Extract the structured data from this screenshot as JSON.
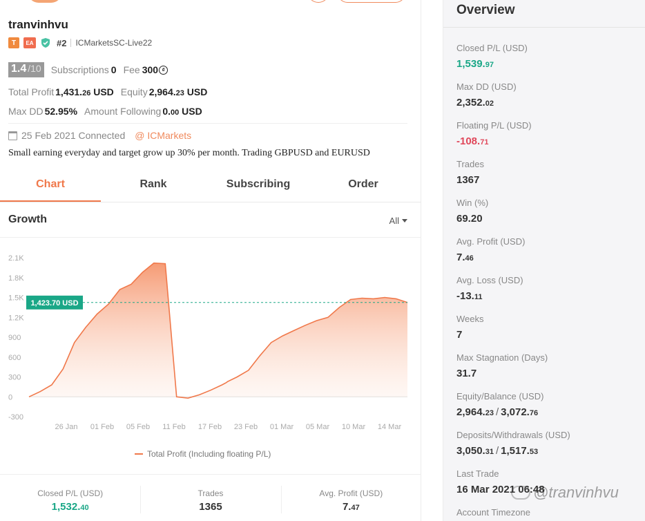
{
  "profile": {
    "username": "tranvinhvu",
    "badge_t": "T",
    "badge_ea": "EA",
    "rank": "#2",
    "server": "ICMarketsSC-Live22",
    "score": "1.4",
    "score_den": "/10",
    "subscriptions_label": "Subscriptions",
    "subscriptions_value": "0",
    "fee_label": "Fee",
    "fee_value": "300",
    "total_profit_label": "Total Profit",
    "total_profit_int": "1,431.",
    "total_profit_dec": "26",
    "total_profit_unit": " USD",
    "equity_label": "Equity",
    "equity_int": "2,964.",
    "equity_dec": "23",
    "equity_unit": " USD",
    "max_dd_label": "Max DD",
    "max_dd_value": "52.95%",
    "amount_following_label": "Amount Following",
    "amount_following_int": "0.",
    "amount_following_dec": "00",
    "amount_following_unit": " USD",
    "connected_text": "25 Feb 2021 Connected",
    "broker": "@ ICMarkets",
    "description": "Small earning everyday and target grow up 30% per month. Trading GBPUSD and EURUSD"
  },
  "tabs": [
    "Chart",
    "Rank",
    "Subscribing",
    "Order"
  ],
  "growth": {
    "title": "Growth",
    "range": "All",
    "current_label": "1,423.70 USD",
    "legend": "Total Profit (Including floating P/L)"
  },
  "chart_data": {
    "type": "area",
    "title": "Growth",
    "series_name": "Total Profit (Including floating P/L)",
    "y_ticks": [
      "2.1K",
      "1.8K",
      "1.5K",
      "1.2K",
      "900",
      "600",
      "300",
      "0",
      "-300"
    ],
    "x_ticks": [
      "26 Jan",
      "01 Feb",
      "05 Feb",
      "11 Feb",
      "17 Feb",
      "23 Feb",
      "01 Mar",
      "05 Mar",
      "10 Mar",
      "14 Mar"
    ],
    "ylim": [
      -300,
      2100
    ],
    "current_value": 1423.7,
    "x": [
      0,
      0.03,
      0.06,
      0.09,
      0.12,
      0.15,
      0.18,
      0.21,
      0.24,
      0.27,
      0.3,
      0.33,
      0.36,
      0.39,
      0.42,
      0.45,
      0.48,
      0.51,
      0.52,
      0.525,
      0.55,
      0.58,
      0.61,
      0.64,
      0.67,
      0.7,
      0.73,
      0.76,
      0.79,
      0.82,
      0.85,
      0.88,
      0.91,
      0.94,
      0.97,
      1.0
    ],
    "values": [
      0,
      80,
      180,
      420,
      820,
      1050,
      1250,
      1400,
      1620,
      1700,
      1880,
      2020,
      2010,
      0,
      -20,
      30,
      100,
      180,
      210,
      230,
      300,
      400,
      620,
      820,
      920,
      1000,
      1080,
      1150,
      1200,
      1350,
      1470,
      1490,
      1480,
      1500,
      1480,
      1424
    ],
    "grid": true
  },
  "bottom_stats": [
    {
      "label": "Closed P/L (USD)",
      "int": "1,532.",
      "dec": "40",
      "color": "#1aa787"
    },
    {
      "label": "Trades",
      "int": "1365",
      "dec": "",
      "color": "#333333"
    },
    {
      "label": "Avg. Profit (USD)",
      "int": "7.",
      "dec": "47",
      "color": "#333333"
    }
  ],
  "overview": {
    "title": "Overview",
    "items": [
      {
        "label": "Closed P/L (USD)",
        "int": "1,539.",
        "dec": "97",
        "tone": "green"
      },
      {
        "label": "Max DD (USD)",
        "int": "2,352.",
        "dec": "02",
        "tone": "normal"
      },
      {
        "label": "Floating P/L (USD)",
        "int": "-108.",
        "dec": "71",
        "tone": "red"
      },
      {
        "label": "Trades",
        "int": "1367",
        "dec": "",
        "tone": "normal"
      },
      {
        "label": "Win (%)",
        "int": "69.20",
        "dec": "",
        "tone": "normal"
      },
      {
        "label": "Avg. Profit (USD)",
        "int": "7.",
        "dec": "46",
        "tone": "normal"
      },
      {
        "label": "Avg. Loss (USD)",
        "int": "-13.",
        "dec": "11",
        "tone": "normal"
      },
      {
        "label": "Weeks",
        "int": "7",
        "dec": "",
        "tone": "normal"
      },
      {
        "label": "Max Stagnation (Days)",
        "int": "31.7",
        "dec": "",
        "tone": "normal"
      },
      {
        "label": "Equity/Balance (USD)",
        "int": "2,964.",
        "dec": "23",
        "int2": "3,072.",
        "dec2": "76",
        "tone": "normal"
      },
      {
        "label": "Deposits/Withdrawals (USD)",
        "int": "3,050.",
        "dec": "31",
        "int2": "1,517.",
        "dec2": "53",
        "tone": "normal"
      },
      {
        "label": "Last Trade",
        "int": "16 Mar 2021 06:48",
        "dec": "",
        "tone": "normal"
      },
      {
        "label": "Account Timezone",
        "int": "",
        "dec": "",
        "tone": "normal"
      }
    ]
  },
  "watermark": "@tranvinhvu",
  "colors": {
    "accent": "#f0784a",
    "green": "#1aa787",
    "red": "#e0475a"
  }
}
